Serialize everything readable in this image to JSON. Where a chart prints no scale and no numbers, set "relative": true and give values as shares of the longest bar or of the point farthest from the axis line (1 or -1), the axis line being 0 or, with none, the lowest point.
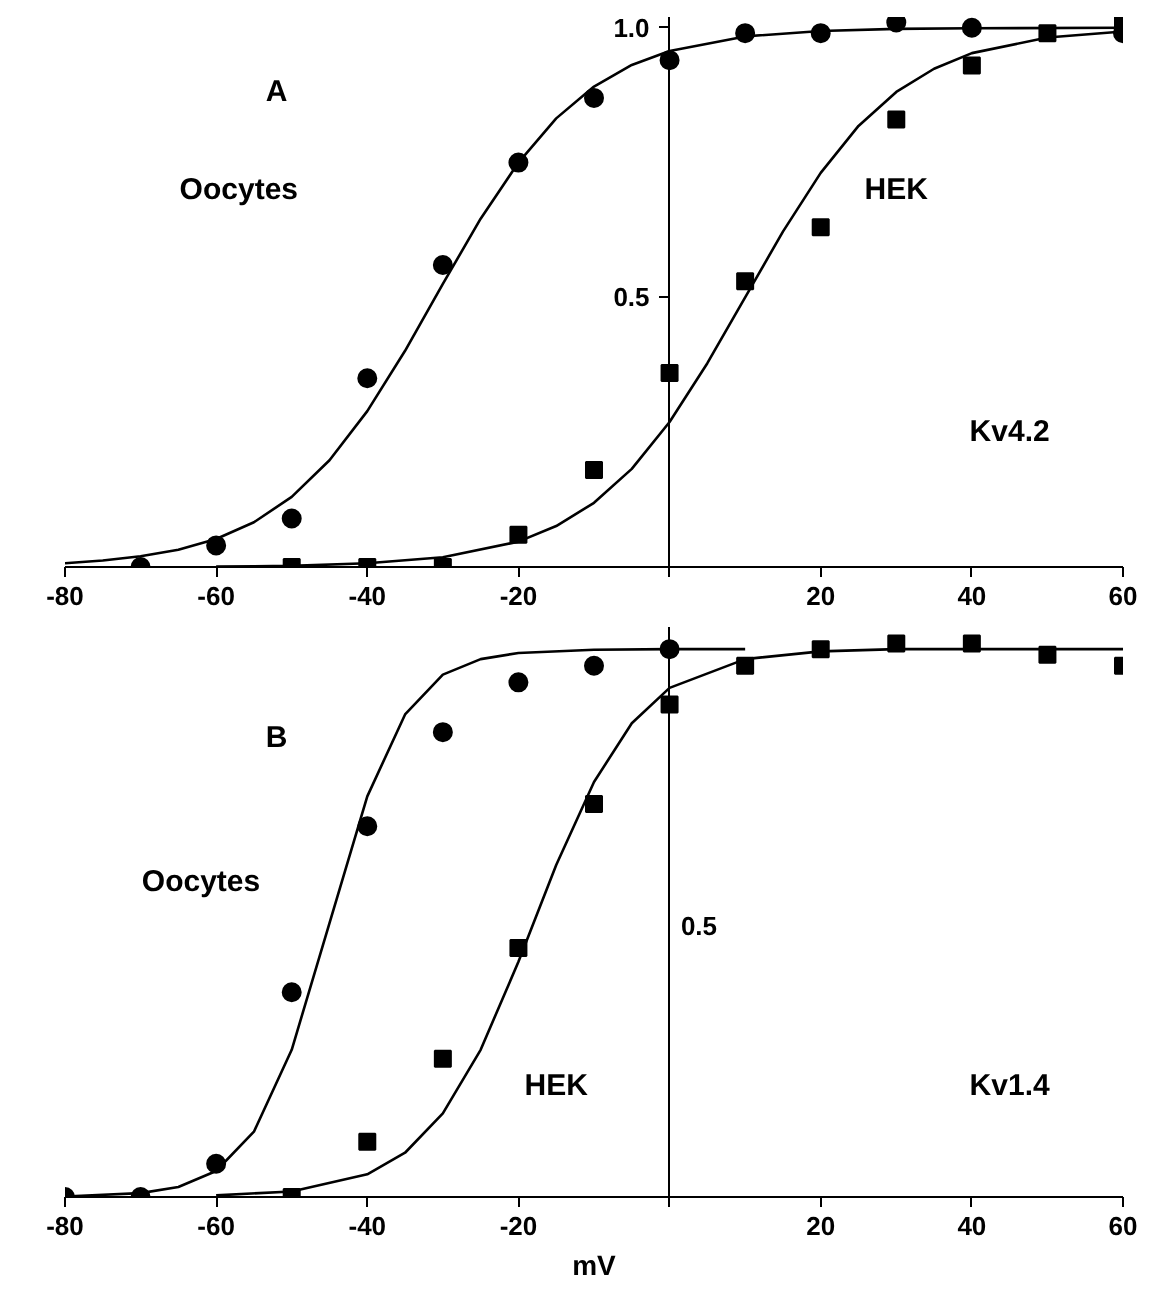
{
  "chart_data": [
    {
      "type": "scatter",
      "xlim": [
        -80,
        60
      ],
      "ylim": [
        0,
        1.02
      ],
      "xticks": [
        -80,
        -60,
        -40,
        -20,
        {
          "value": 0,
          "label": null
        },
        20,
        40,
        60
      ],
      "yticks": [
        0.5,
        {
          "value": 1.0,
          "label": "1.0"
        }
      ],
      "series": [
        {
          "marker": "circle",
          "color": "#000000",
          "x": [
            -70,
            -60,
            -50,
            -40,
            -30,
            -20,
            -10,
            0,
            10,
            20,
            30,
            40,
            60
          ],
          "values": [
            0,
            0.04,
            0.09,
            0.35,
            0.56,
            0.75,
            0.87,
            0.94,
            0.99,
            0.99,
            1.01,
            1.0,
            0.99
          ]
        },
        {
          "marker": "square",
          "color": "#000000",
          "x": [
            -50,
            -40,
            -30,
            -20,
            -10,
            0,
            10,
            20,
            30,
            40,
            50,
            60
          ],
          "values": [
            0,
            0,
            0,
            0.06,
            0.18,
            0.36,
            0.53,
            0.63,
            0.83,
            0.93,
            0.99,
            1.01
          ]
        },
        {
          "type": "line",
          "marker": "none",
          "color": "#000000",
          "x": [
            -80,
            -75,
            -70,
            -65,
            -60,
            -55,
            -50,
            -45,
            -40,
            -35,
            -30,
            -25,
            -20,
            -15,
            -10,
            -5,
            0,
            10,
            20,
            30,
            40,
            60
          ],
          "values": [
            0.007,
            0.012,
            0.02,
            0.032,
            0.052,
            0.083,
            0.13,
            0.198,
            0.289,
            0.401,
            0.525,
            0.646,
            0.75,
            0.832,
            0.891,
            0.931,
            0.957,
            0.984,
            0.994,
            0.998,
            0.999,
            1.0
          ]
        },
        {
          "type": "line",
          "marker": "none",
          "color": "#000000",
          "x": [
            -60,
            -50,
            -40,
            -30,
            -20,
            -15,
            -10,
            -5,
            0,
            5,
            10,
            15,
            20,
            25,
            30,
            35,
            40,
            50,
            60
          ],
          "values": [
            0.001,
            0.002,
            0.007,
            0.018,
            0.047,
            0.076,
            0.119,
            0.182,
            0.269,
            0.378,
            0.5,
            0.622,
            0.731,
            0.818,
            0.881,
            0.924,
            0.953,
            0.982,
            0.993
          ]
        }
      ],
      "annotations": [
        "A",
        "Oocytes",
        "HEK",
        "Kv4.2"
      ]
    },
    {
      "type": "scatter",
      "relative": true,
      "xlim": [
        -80,
        60
      ],
      "xticks": [
        -80,
        -60,
        -40,
        -20,
        {
          "value": 0,
          "label": null
        },
        20,
        40,
        60
      ],
      "xlabel": "mV",
      "series": [
        {
          "marker": "circle",
          "color": "#000000",
          "x": [
            -80,
            -70,
            -60,
            -50,
            -40,
            -30,
            -20,
            -10,
            0
          ],
          "values": [
            0,
            0,
            0.06,
            0.37,
            0.67,
            0.84,
            0.93,
            0.96,
            0.99
          ]
        },
        {
          "marker": "square",
          "color": "#000000",
          "x": [
            -50,
            -40,
            -30,
            -20,
            -10,
            0,
            10,
            20,
            30,
            40,
            50,
            60
          ],
          "values": [
            0,
            0.1,
            0.25,
            0.45,
            0.71,
            0.89,
            0.96,
            0.99,
            1.0,
            1.0,
            0.98,
            0.96
          ]
        },
        {
          "type": "line",
          "marker": "none",
          "color": "#000000",
          "x": [
            -80,
            -70,
            -65,
            -60,
            -55,
            -50,
            -45,
            -40,
            -35,
            -30,
            -25,
            -20,
            -10,
            0,
            10
          ],
          "values": [
            0.001,
            0.007,
            0.018,
            0.047,
            0.118,
            0.266,
            0.495,
            0.724,
            0.872,
            0.944,
            0.972,
            0.983,
            0.989,
            0.99,
            0.99
          ]
        },
        {
          "type": "line",
          "marker": "none",
          "color": "#000000",
          "x": [
            -60,
            -50,
            -40,
            -35,
            -30,
            -25,
            -20,
            -15,
            -10,
            -5,
            0,
            10,
            20,
            30,
            40,
            60
          ],
          "values": [
            0.003,
            0.01,
            0.041,
            0.08,
            0.151,
            0.266,
            0.425,
            0.6,
            0.75,
            0.856,
            0.92,
            0.972,
            0.986,
            0.99,
            0.99,
            0.99
          ]
        }
      ],
      "annotations": [
        "B",
        "Oocytes",
        "HEK",
        "Kv1.4",
        "0.5"
      ]
    }
  ]
}
